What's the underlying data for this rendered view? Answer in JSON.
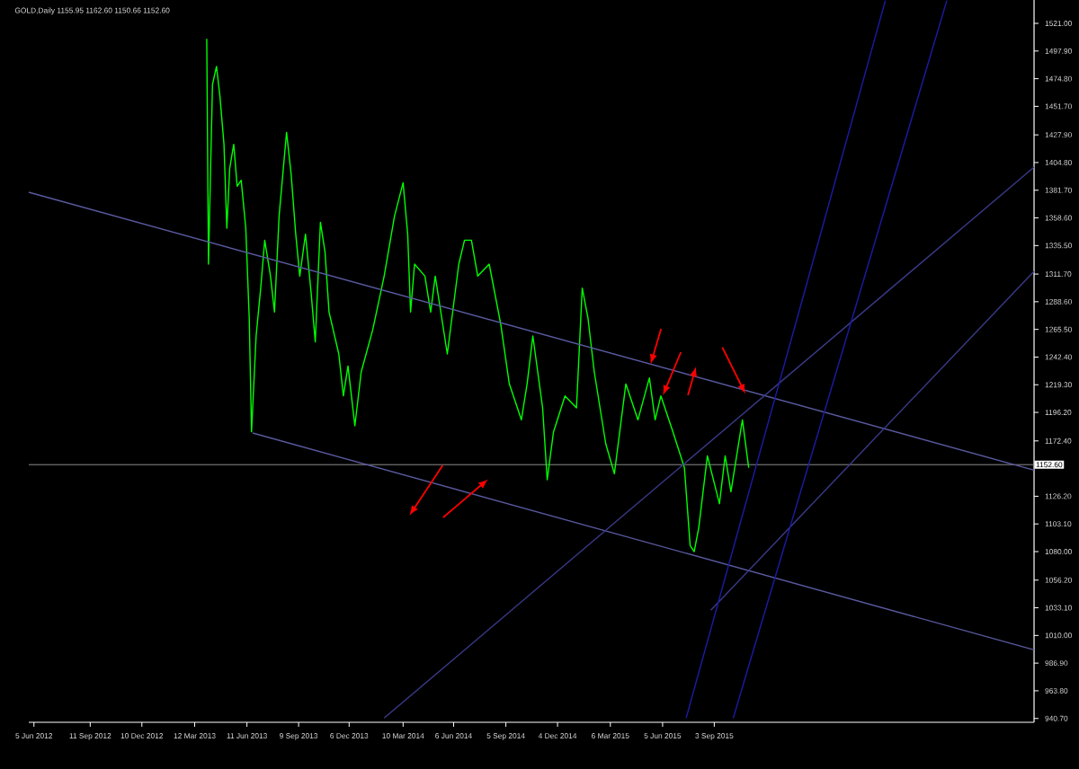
{
  "chart_data": {
    "type": "line",
    "title": "GOLD,Daily  1155.95 1162.60 1150.66 1152.60",
    "xlim": [
      "2012-05-27",
      "2017-03-13"
    ],
    "ylim": [
      937.5,
      1540.5
    ],
    "xticks": [
      {
        "value": "2012-06-05",
        "label": "5 Jun 2012"
      },
      {
        "value": "2012-09-11",
        "label": "11 Sep 2012"
      },
      {
        "value": "2012-12-10",
        "label": "10 Dec 2012"
      },
      {
        "value": "2013-03-12",
        "label": "12 Mar 2013"
      },
      {
        "value": "2013-06-11",
        "label": "11 Jun 2013"
      },
      {
        "value": "2013-09-09",
        "label": "9 Sep 2013"
      },
      {
        "value": "2013-12-06",
        "label": "6 Dec 2013"
      },
      {
        "value": "2014-03-10",
        "label": "10 Mar 2014"
      },
      {
        "value": "2014-06-06",
        "label": "6 Jun 2014"
      },
      {
        "value": "2014-09-05",
        "label": "5 Sep 2014"
      },
      {
        "value": "2014-12-04",
        "label": "4 Dec 2014"
      },
      {
        "value": "2015-03-06",
        "label": "6 Mar 2015"
      },
      {
        "value": "2015-06-05",
        "label": "5 Jun 2015"
      },
      {
        "value": "2015-09-03",
        "label": "3 Sep 2015"
      }
    ],
    "yticks": [
      {
        "value": 1521.0,
        "label": "1521.00"
      },
      {
        "value": 1497.9,
        "label": "1497.90"
      },
      {
        "value": 1474.8,
        "label": "1474.80"
      },
      {
        "value": 1451.7,
        "label": "1451.70"
      },
      {
        "value": 1427.9,
        "label": "1427.90"
      },
      {
        "value": 1404.8,
        "label": "1404.80"
      },
      {
        "value": 1381.7,
        "label": "1381.70"
      },
      {
        "value": 1358.6,
        "label": "1358.60"
      },
      {
        "value": 1335.5,
        "label": "1335.50"
      },
      {
        "value": 1311.7,
        "label": "1311.70"
      },
      {
        "value": 1288.6,
        "label": "1288.60"
      },
      {
        "value": 1265.5,
        "label": "1265.50"
      },
      {
        "value": 1242.4,
        "label": "1242.40"
      },
      {
        "value": 1219.3,
        "label": "1219.30"
      },
      {
        "value": 1196.2,
        "label": "1196.20"
      },
      {
        "value": 1172.4,
        "label": "1172.40"
      },
      {
        "value": 1126.2,
        "label": "1126.20"
      },
      {
        "value": 1103.1,
        "label": "1103.10"
      },
      {
        "value": 1080.0,
        "label": "1080.00"
      },
      {
        "value": 1056.2,
        "label": "1056.20"
      },
      {
        "value": 1033.1,
        "label": "1033.10"
      },
      {
        "value": 1010.0,
        "label": "1010.00"
      },
      {
        "value": 986.9,
        "label": "986.90"
      },
      {
        "value": 963.8,
        "label": "963.80"
      },
      {
        "value": 940.7,
        "label": "940.70"
      }
    ],
    "ref_lines": [
      {
        "axis": "y",
        "value": 1152.6,
        "label": "1152.60",
        "color": "#8c8c8c"
      }
    ],
    "series": [
      {
        "color": "#00ff00",
        "x": [
          "2013-04-02",
          "2013-04-05",
          "2013-04-12",
          "2013-04-19",
          "2013-04-25",
          "2013-05-02",
          "2013-05-07",
          "2013-05-12",
          "2013-05-19",
          "2013-05-25",
          "2013-06-01",
          "2013-06-09",
          "2013-06-15",
          "2013-06-19",
          "2013-06-27",
          "2013-07-05",
          "2013-07-12",
          "2013-07-22",
          "2013-07-29",
          "2013-08-06",
          "2013-08-19",
          "2013-08-27",
          "2013-09-04",
          "2013-09-11",
          "2013-09-21",
          "2013-10-01",
          "2013-10-08",
          "2013-10-17",
          "2013-10-25",
          "2013-11-01",
          "2013-11-18",
          "2013-11-26",
          "2013-12-04",
          "2013-12-16",
          "2013-12-27",
          "2014-01-16",
          "2014-02-05",
          "2014-02-23",
          "2014-03-10",
          "2014-03-18",
          "2014-03-23",
          "2014-03-30",
          "2014-04-17",
          "2014-04-27",
          "2014-05-05",
          "2014-05-26",
          "2014-06-15",
          "2014-06-25",
          "2014-07-07",
          "2014-07-18",
          "2014-08-07",
          "2014-08-27",
          "2014-09-11",
          "2014-10-02",
          "2014-10-12",
          "2014-10-22",
          "2014-11-08",
          "2014-11-16",
          "2014-11-27",
          "2014-12-17",
          "2015-01-06",
          "2015-01-16",
          "2015-01-26",
          "2015-02-06",
          "2015-02-26",
          "2015-03-13",
          "2015-04-02",
          "2015-04-23",
          "2015-05-13",
          "2015-05-23",
          "2015-06-02",
          "2015-06-23",
          "2015-07-13",
          "2015-07-23",
          "2015-07-30",
          "2015-08-07",
          "2015-08-22",
          "2015-09-12",
          "2015-09-22",
          "2015-10-02",
          "2015-10-22",
          "2015-11-02"
        ],
        "values": [
          1508,
          1320,
          1470,
          1485,
          1460,
          1420,
          1350,
          1400,
          1420,
          1385,
          1390,
          1350,
          1275,
          1180,
          1260,
          1300,
          1340,
          1310,
          1280,
          1360,
          1430,
          1395,
          1345,
          1310,
          1345,
          1295,
          1255,
          1355,
          1330,
          1280,
          1245,
          1210,
          1235,
          1185,
          1230,
          1265,
          1310,
          1360,
          1388,
          1345,
          1280,
          1320,
          1310,
          1280,
          1310,
          1245,
          1320,
          1340,
          1340,
          1310,
          1320,
          1270,
          1220,
          1190,
          1220,
          1260,
          1200,
          1140,
          1180,
          1210,
          1200,
          1300,
          1275,
          1230,
          1170,
          1145,
          1220,
          1190,
          1225,
          1190,
          1210,
          1180,
          1150,
          1085,
          1080,
          1100,
          1160,
          1120,
          1160,
          1130,
          1190,
          1150
        ]
      },
      {
        "color": "#5a5aa0",
        "x": [
          "2012-05-27",
          "2017-03-13"
        ],
        "values": [
          1380,
          1148
        ]
      },
      {
        "color": "#5a5aa0",
        "x": [
          "2013-06-21",
          "2017-03-13"
        ],
        "values": [
          1179,
          998
        ]
      },
      {
        "color": "#3a3a8a",
        "x": [
          "2014-02-05",
          "2017-03-13"
        ],
        "values": [
          941,
          1401
        ]
      },
      {
        "color": "#3a3a8a",
        "x": [
          "2015-08-28",
          "2017-03-13"
        ],
        "values": [
          1031,
          1314
        ]
      },
      {
        "color": "#1c1ca8",
        "x": [
          "2015-07-16",
          "2016-06-27"
        ],
        "values": [
          941,
          1540
        ]
      },
      {
        "color": "#1c1ca8",
        "x": [
          "2015-10-06",
          "2016-10-12"
        ],
        "values": [
          941,
          1540
        ]
      }
    ]
  }
}
